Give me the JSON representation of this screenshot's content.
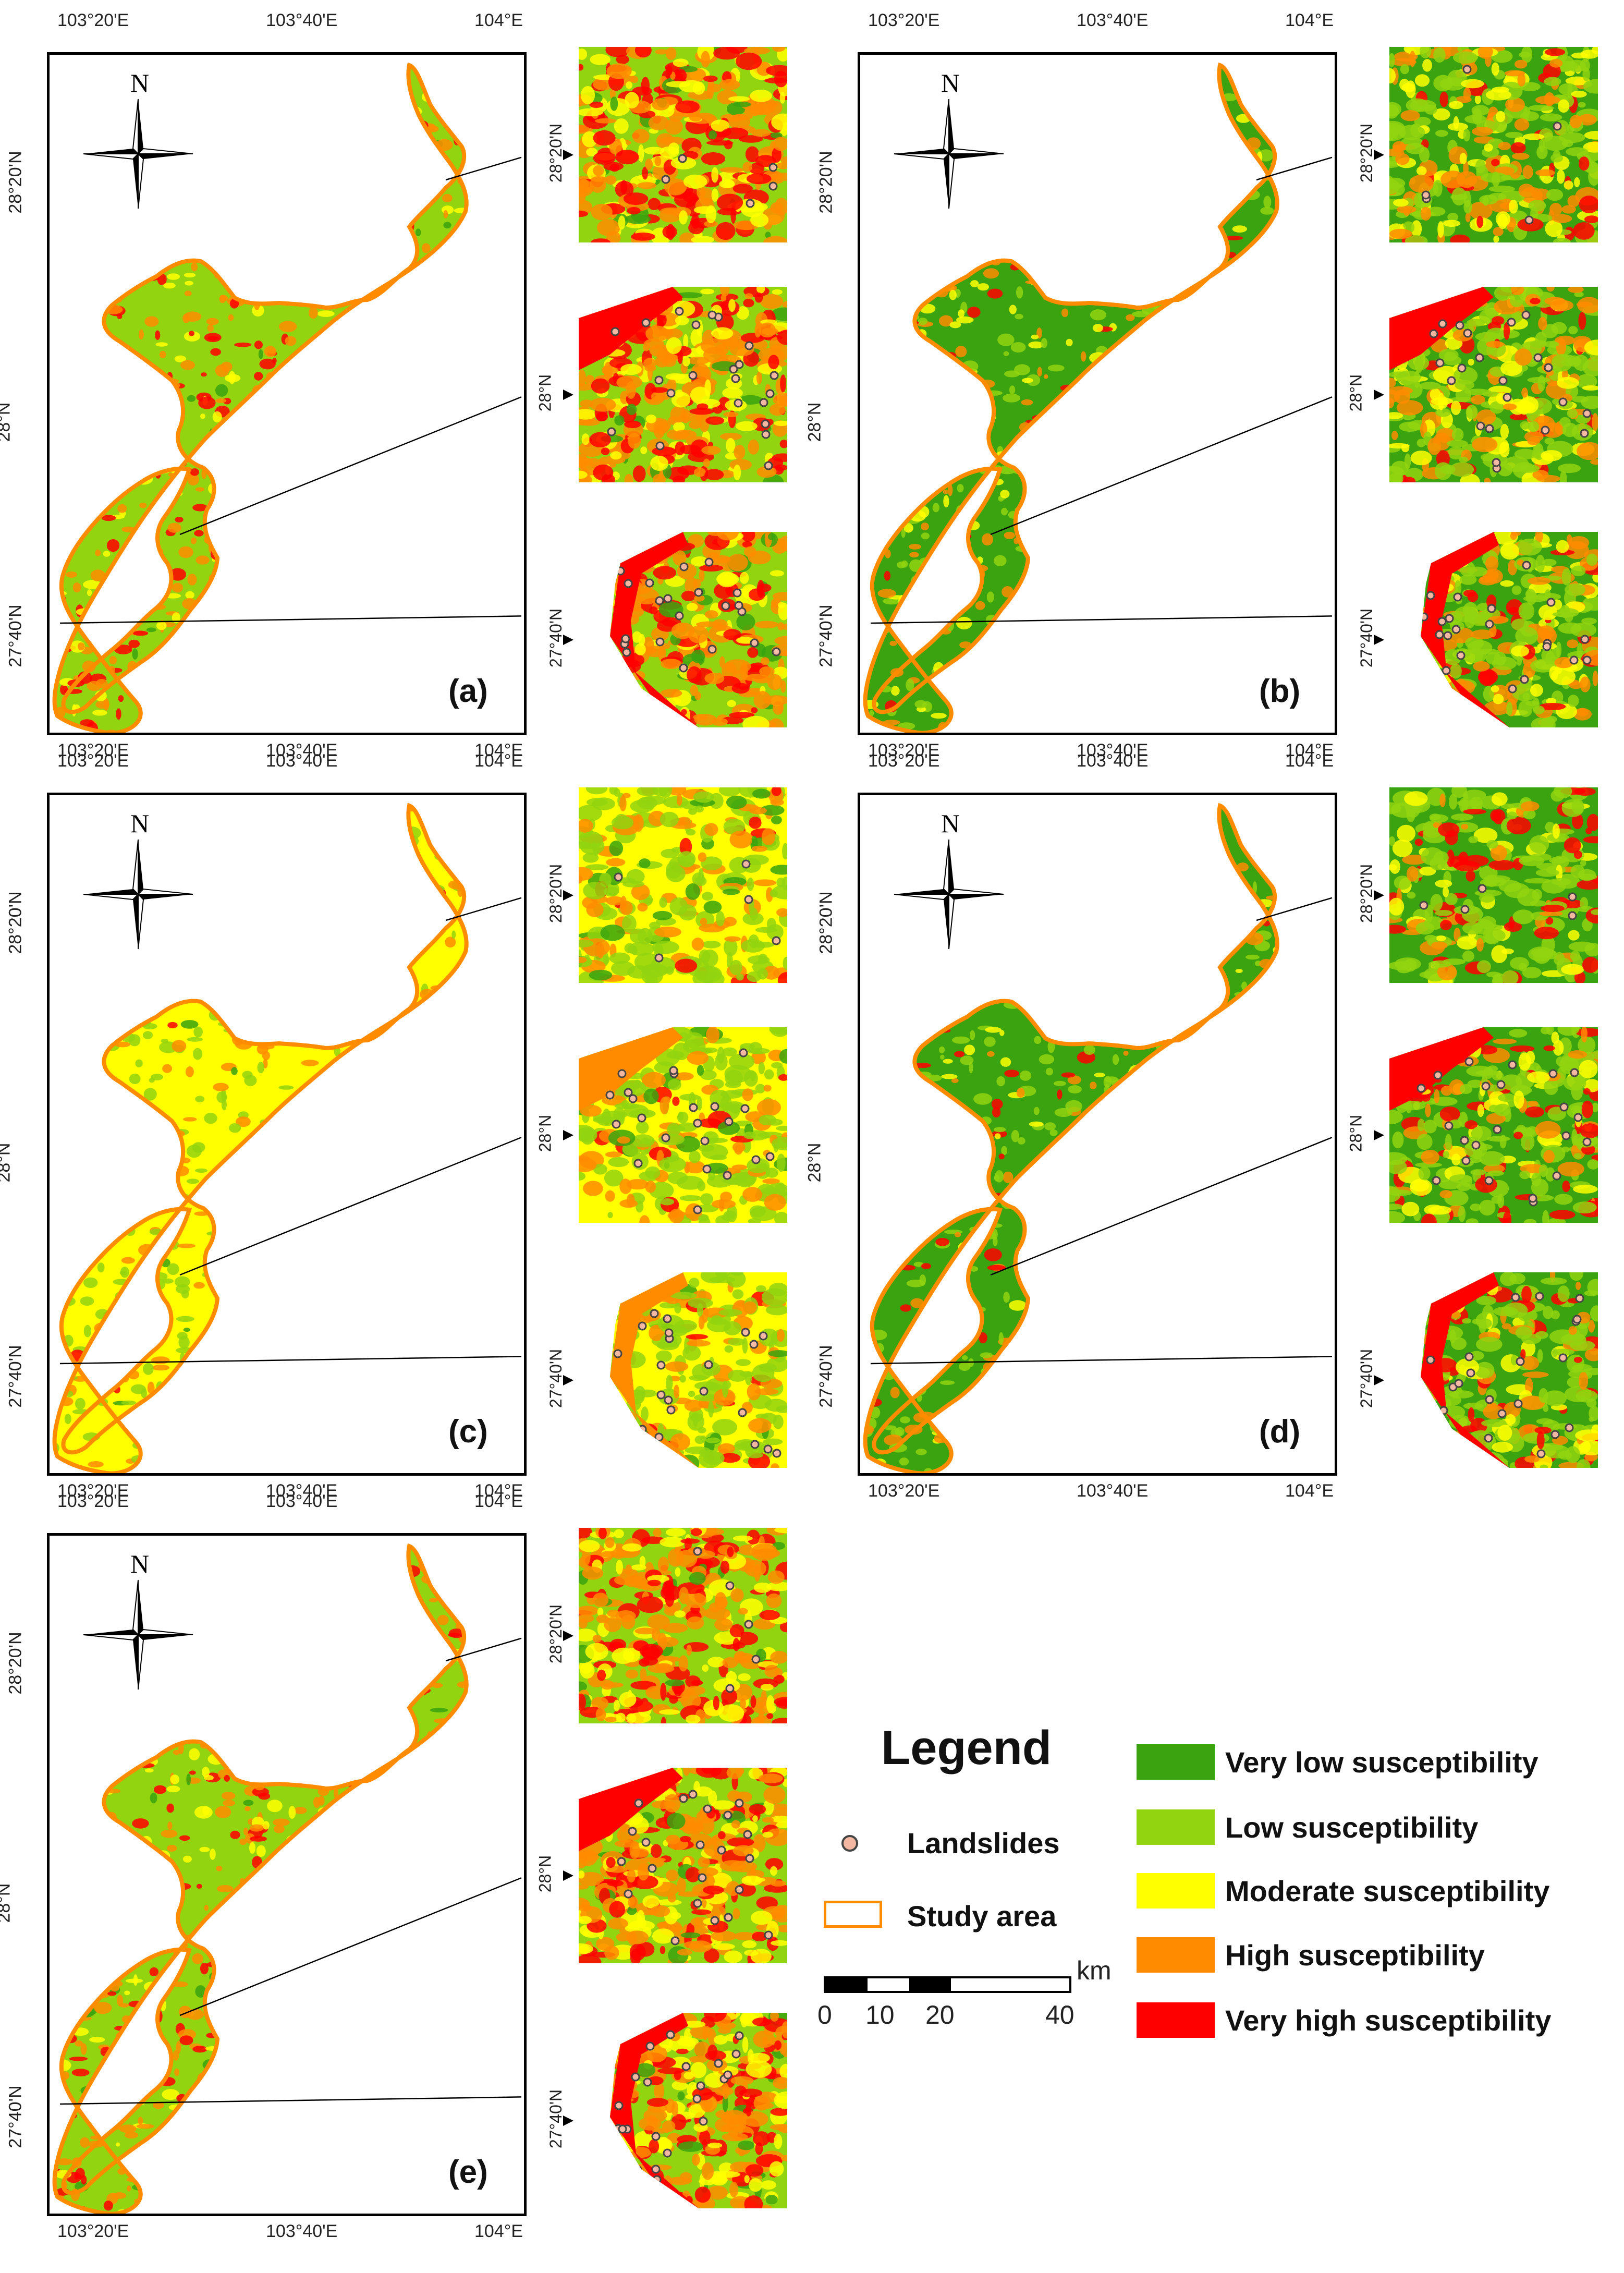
{
  "panels": [
    {
      "letter": "(a)",
      "palette": "a"
    },
    {
      "letter": "(b)",
      "palette": "b"
    },
    {
      "letter": "(c)",
      "palette": "c"
    },
    {
      "letter": "(d)",
      "palette": "d"
    },
    {
      "letter": "(e)",
      "palette": "e"
    }
  ],
  "axes": {
    "lon_ticks": [
      "103°20'E",
      "103°40'E",
      "104°E"
    ],
    "lat_ticks": [
      "28°20'N",
      "28°N",
      "27°40'N"
    ]
  },
  "compass_label": "N",
  "legend": {
    "title": "Legend",
    "landslides": "Landslides",
    "study_area": "Study area",
    "classes": [
      {
        "label": "Very low susceptibility",
        "color": "#3aa30f"
      },
      {
        "label": "Low susceptibility",
        "color": "#92d40f"
      },
      {
        "label": "Moderate susceptibility",
        "color": "#ffff00"
      },
      {
        "label": "High susceptibility",
        "color": "#ff8c00"
      },
      {
        "label": "Very high susceptibility",
        "color": "#ff0000"
      }
    ],
    "scale": {
      "unit": "km",
      "ticks": [
        "0",
        "10",
        "20",
        "40"
      ]
    }
  },
  "colors": {
    "very_low": "#3aa30f",
    "low": "#92d40f",
    "moderate": "#ffff00",
    "high": "#ff8c00",
    "very_high": "#ff0000",
    "study_area_outline": "#ff8c00",
    "landslide_dot": "#f4b8a2"
  }
}
